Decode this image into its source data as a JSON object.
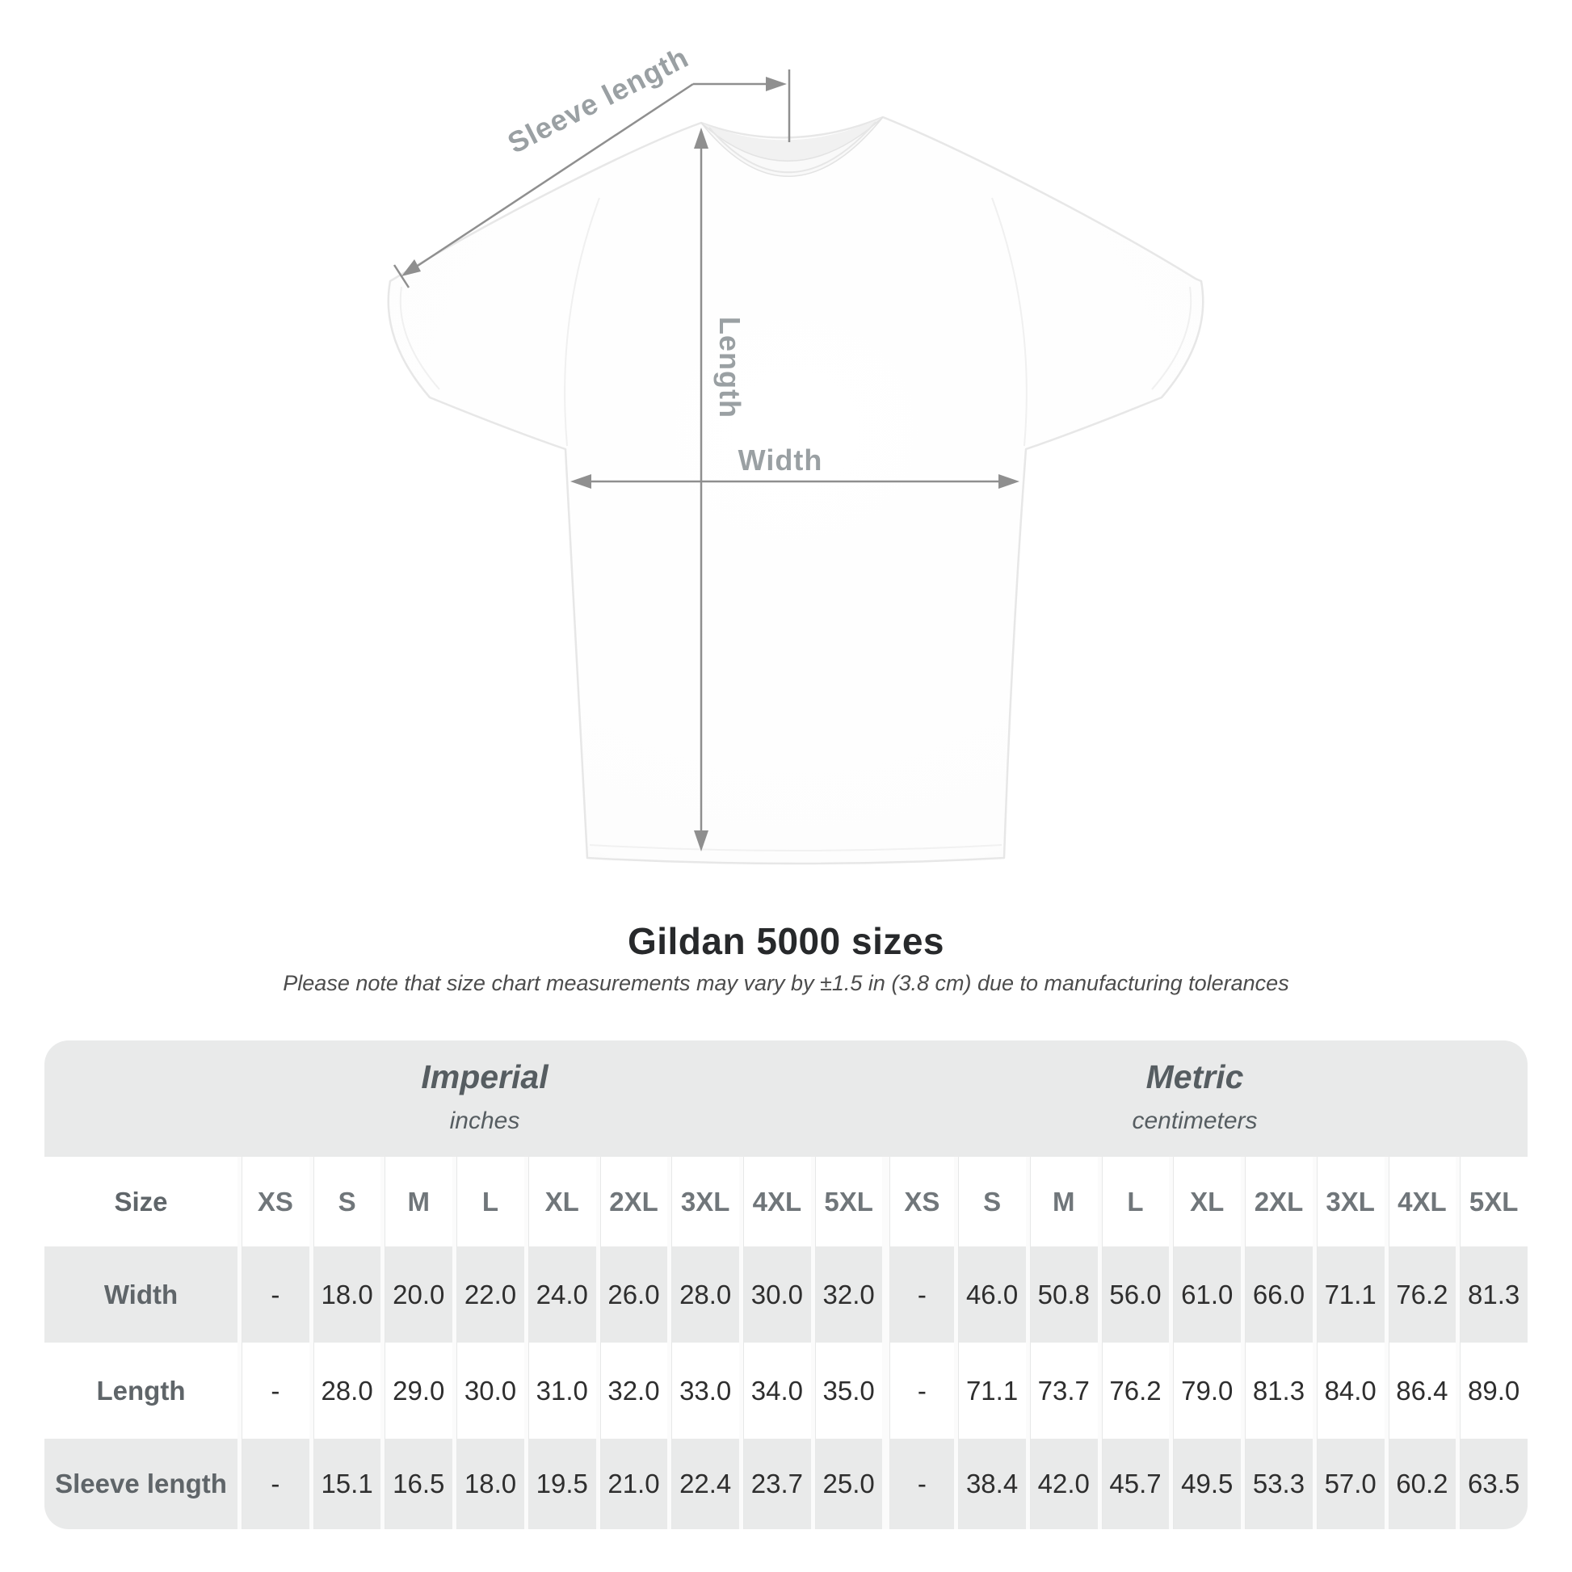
{
  "page": {
    "title": "Gildan 5000 sizes",
    "subtitle": "Please note that size chart measurements may vary by ±1.5 in (3.8 cm) due to manufacturing tolerances"
  },
  "diagram": {
    "labels": {
      "sleeve_length": "Sleeve length",
      "length": "Length",
      "width": "Width"
    }
  },
  "size_chart": {
    "size_column_header": "Size",
    "group_headers": [
      {
        "label": "Imperial",
        "unit": "inches"
      },
      {
        "label": "Metric",
        "unit": "centimeters"
      }
    ],
    "sizes": [
      "XS",
      "S",
      "M",
      "L",
      "XL",
      "2XL",
      "3XL",
      "4XL",
      "5XL"
    ],
    "rows": [
      {
        "label": "Width",
        "imperial": [
          "-",
          "18.0",
          "20.0",
          "22.0",
          "24.0",
          "26.0",
          "28.0",
          "30.0",
          "32.0"
        ],
        "metric": [
          "-",
          "46.0",
          "50.8",
          "56.0",
          "61.0",
          "66.0",
          "71.1",
          "76.2",
          "81.3"
        ]
      },
      {
        "label": "Length",
        "imperial": [
          "-",
          "28.0",
          "29.0",
          "30.0",
          "31.0",
          "32.0",
          "33.0",
          "34.0",
          "35.0"
        ],
        "metric": [
          "-",
          "71.1",
          "73.7",
          "76.2",
          "79.0",
          "81.3",
          "84.0",
          "86.4",
          "89.0"
        ]
      },
      {
        "label": "Sleeve length",
        "imperial": [
          "-",
          "15.1",
          "16.5",
          "18.0",
          "19.5",
          "21.0",
          "22.4",
          "23.7",
          "25.0"
        ],
        "metric": [
          "-",
          "38.4",
          "42.0",
          "45.7",
          "49.5",
          "53.3",
          "57.0",
          "60.2",
          "63.5"
        ]
      }
    ]
  },
  "chart_data": {
    "type": "table",
    "title": "Gildan 5000 sizes",
    "columns": [
      "Size",
      "XS",
      "S",
      "M",
      "L",
      "XL",
      "2XL",
      "3XL",
      "4XL",
      "5XL"
    ],
    "units": [
      "inches",
      "centimeters"
    ],
    "rows_imperial": [
      [
        "Width",
        "-",
        18.0,
        20.0,
        22.0,
        24.0,
        26.0,
        28.0,
        30.0,
        32.0
      ],
      [
        "Length",
        "-",
        28.0,
        29.0,
        30.0,
        31.0,
        32.0,
        33.0,
        34.0,
        35.0
      ],
      [
        "Sleeve length",
        "-",
        15.1,
        16.5,
        18.0,
        19.5,
        21.0,
        22.4,
        23.7,
        25.0
      ]
    ],
    "rows_metric": [
      [
        "Width",
        "-",
        46.0,
        50.8,
        56.0,
        61.0,
        66.0,
        71.1,
        76.2,
        81.3
      ],
      [
        "Length",
        "-",
        71.1,
        73.7,
        76.2,
        79.0,
        81.3,
        84.0,
        86.4,
        89.0
      ],
      [
        "Sleeve length",
        "-",
        38.4,
        42.0,
        45.7,
        49.5,
        53.3,
        57.0,
        60.2,
        63.5
      ]
    ]
  },
  "colors": {
    "band_gray": "#e9eaea",
    "measure_line": "#8f8f8f",
    "measure_label": "#9aa0a3",
    "title_text": "#27292b"
  }
}
